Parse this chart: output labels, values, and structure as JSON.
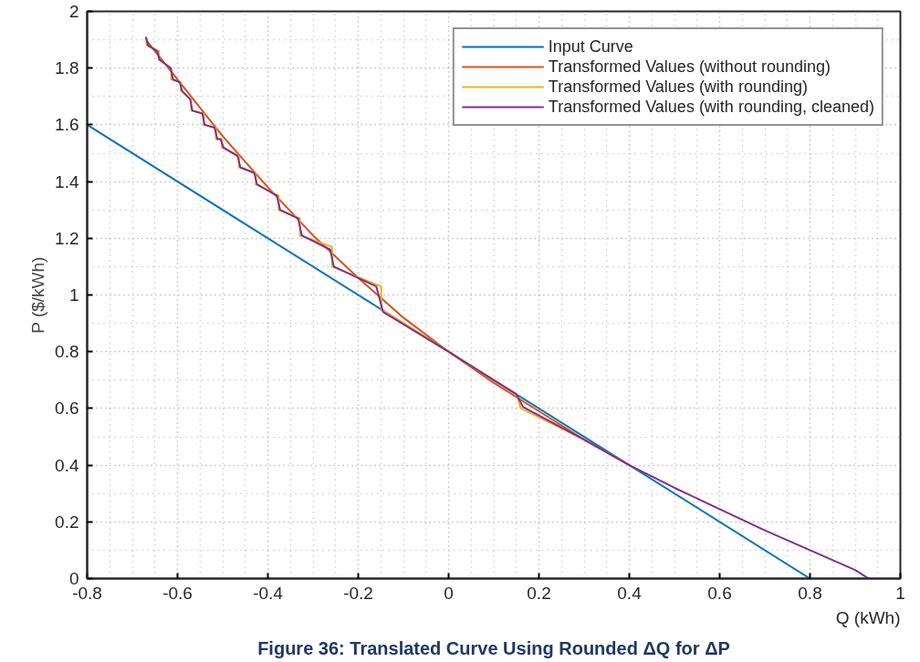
{
  "chart_data": {
    "type": "line",
    "title": "Figure 36: Translated Curve Using Rounded ΔQ for ΔP",
    "xlabel": "Q (kWh)",
    "ylabel": "P ($/kWh)",
    "xlim": [
      -0.8,
      1
    ],
    "ylim": [
      0,
      2
    ],
    "xticks": [
      -0.8,
      -0.6,
      -0.4,
      -0.2,
      0,
      0.2,
      0.4,
      0.6,
      0.8,
      1
    ],
    "yticks": [
      0,
      0.2,
      0.4,
      0.6,
      0.8,
      1,
      1.2,
      1.4,
      1.6,
      1.8,
      2
    ],
    "grid": true,
    "legend": "top right",
    "marker": "none",
    "line_style": "solid",
    "series": [
      {
        "name": "Input Curve",
        "color": "#0072bd",
        "x": [
          -0.8,
          0.8
        ],
        "values": [
          1.6,
          0
        ]
      },
      {
        "name": "Transformed Values (without rounding)",
        "color": "#d95319",
        "x": [
          -0.67,
          -0.6,
          -0.5,
          -0.4,
          -0.3,
          -0.2,
          -0.1,
          0,
          0.1,
          0.2,
          0.3,
          0.4
        ],
        "values": [
          1.9,
          1.76,
          1.56,
          1.38,
          1.21,
          1.06,
          0.92,
          0.8,
          0.69,
          0.59,
          0.49,
          0.4
        ]
      },
      {
        "name": "Transformed Values (with rounding)",
        "color": "#edb120",
        "x": [
          -0.67,
          -0.668,
          -0.641,
          -0.641,
          -0.614,
          -0.614,
          -0.593,
          -0.593,
          -0.57,
          -0.57,
          -0.542,
          -0.542,
          -0.515,
          -0.515,
          -0.502,
          -0.502,
          -0.464,
          -0.464,
          -0.427,
          -0.427,
          -0.376,
          -0.376,
          -0.329,
          -0.329,
          -0.258,
          -0.258,
          -0.149,
          -0.149,
          0,
          0.15,
          0.16,
          0.3,
          0.4
        ],
        "values": [
          1.91,
          1.88,
          1.86,
          1.83,
          1.8,
          1.76,
          1.75,
          1.72,
          1.69,
          1.65,
          1.64,
          1.6,
          1.59,
          1.55,
          1.55,
          1.52,
          1.49,
          1.45,
          1.43,
          1.39,
          1.35,
          1.3,
          1.27,
          1.21,
          1.17,
          1.1,
          1.03,
          0.95,
          0.8,
          0.65,
          0.6,
          0.49,
          0.4
        ]
      },
      {
        "name": "Transformed Values (with rounding, cleaned)",
        "color": "#7e2f8e",
        "x": [
          -0.67,
          -0.665,
          -0.645,
          -0.64,
          -0.615,
          -0.61,
          -0.595,
          -0.59,
          -0.572,
          -0.567,
          -0.545,
          -0.54,
          -0.518,
          -0.512,
          -0.505,
          -0.498,
          -0.467,
          -0.461,
          -0.43,
          -0.424,
          -0.38,
          -0.373,
          -0.333,
          -0.325,
          -0.262,
          -0.254,
          -0.16,
          -0.145,
          0,
          0.15,
          0.165,
          0.3,
          0.4,
          0.5,
          0.6,
          0.7,
          0.8,
          0.9,
          0.93
        ],
        "values": [
          1.91,
          1.88,
          1.86,
          1.83,
          1.8,
          1.76,
          1.75,
          1.72,
          1.69,
          1.65,
          1.64,
          1.6,
          1.59,
          1.55,
          1.55,
          1.52,
          1.49,
          1.45,
          1.43,
          1.39,
          1.35,
          1.3,
          1.27,
          1.21,
          1.16,
          1.1,
          1.03,
          0.94,
          0.8,
          0.65,
          0.605,
          0.49,
          0.4,
          0.32,
          0.245,
          0.17,
          0.1,
          0.03,
          0
        ]
      }
    ]
  }
}
